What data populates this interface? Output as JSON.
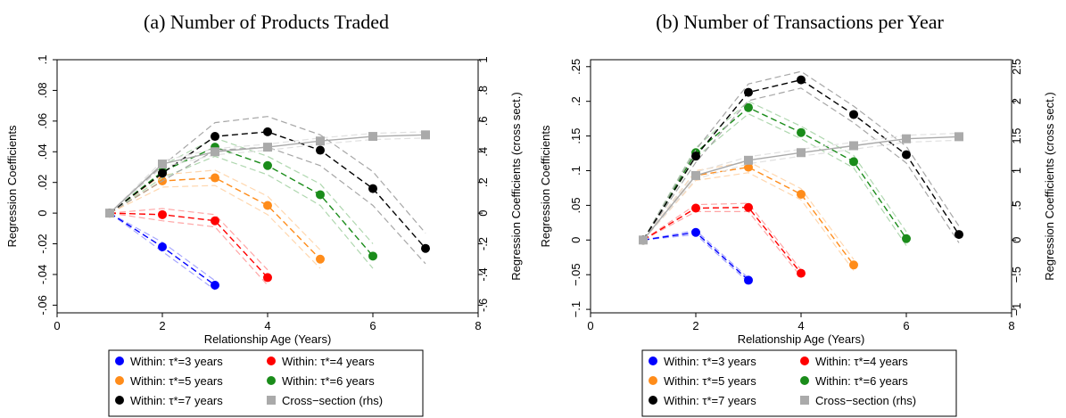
{
  "chart_data": [
    {
      "type": "line",
      "title": "(a) Number of Products Traded",
      "xlabel": "Relationship Age (Years)",
      "ylabel": "Regression Coefficients",
      "ylabel_right": "Regression Coefficients (cross sect.)",
      "xlim": [
        0,
        8
      ],
      "ylim": [
        -0.065,
        0.1
      ],
      "ylim_right": [
        -0.65,
        1.0
      ],
      "x_ticks": [
        0,
        2,
        4,
        6,
        8
      ],
      "x_tick_labels": [
        "0",
        "2",
        "4",
        "6",
        "8"
      ],
      "y_ticks": [
        -0.06,
        -0.04,
        -0.02,
        0,
        0.02,
        0.04,
        0.06,
        0.08,
        0.1
      ],
      "y_tick_labels": [
        "-.06",
        "-.04",
        "-.02",
        "0",
        ".02",
        ".04",
        ".06",
        ".08",
        ".1"
      ],
      "y_ticks_right": [
        -0.6,
        -0.4,
        -0.2,
        0,
        0.2,
        0.4,
        0.6,
        0.8,
        1.0
      ],
      "y_tick_labels_right": [
        "-.6",
        "-.4",
        "-.2",
        "0",
        ".2",
        ".4",
        ".6",
        ".8",
        "1"
      ],
      "grid": false,
      "series": [
        {
          "name": "Within: τ*=3 years",
          "color": "#0000ff",
          "axis": "left",
          "x": [
            1,
            2,
            3
          ],
          "y": [
            0,
            -0.022,
            -0.047
          ],
          "ci_upper": [
            0,
            -0.019,
            -0.044
          ],
          "ci_lower": [
            0,
            -0.025,
            -0.05
          ]
        },
        {
          "name": "Within: τ*=4 years",
          "color": "#ff0000",
          "axis": "left",
          "x": [
            1,
            2,
            3,
            4
          ],
          "y": [
            0,
            -0.001,
            -0.005,
            -0.042
          ],
          "ci_upper": [
            0,
            0.003,
            -0.001,
            -0.037
          ],
          "ci_lower": [
            0,
            -0.005,
            -0.009,
            -0.047
          ]
        },
        {
          "name": "Within: τ*=5 years",
          "color": "#ff8c1a",
          "axis": "left",
          "x": [
            1,
            2,
            3,
            4,
            5
          ],
          "y": [
            0,
            0.021,
            0.023,
            0.005,
            -0.03
          ],
          "ci_upper": [
            0,
            0.025,
            0.028,
            0.011,
            -0.024
          ],
          "ci_lower": [
            0,
            0.017,
            0.018,
            -0.001,
            -0.036
          ]
        },
        {
          "name": "Within: τ*=6 years",
          "color": "#1a8c1a",
          "axis": "left",
          "x": [
            1,
            2,
            3,
            4,
            5,
            6
          ],
          "y": [
            0,
            0.027,
            0.043,
            0.031,
            0.012,
            -0.028
          ],
          "ci_upper": [
            0,
            0.031,
            0.049,
            0.037,
            0.019,
            -0.02
          ],
          "ci_lower": [
            0,
            0.023,
            0.037,
            0.025,
            0.005,
            -0.036
          ]
        },
        {
          "name": "Within: τ*=7 years",
          "color": "#000000",
          "axis": "left",
          "x": [
            1,
            2,
            3,
            4,
            5,
            6,
            7
          ],
          "y": [
            0,
            0.026,
            0.05,
            0.053,
            0.041,
            0.016,
            -0.023
          ],
          "ci_upper": [
            0,
            0.031,
            0.059,
            0.063,
            0.051,
            0.027,
            -0.013
          ],
          "ci_lower": [
            0,
            0.021,
            0.041,
            0.043,
            0.031,
            0.005,
            -0.033
          ]
        },
        {
          "name": "Cross−section (rhs)",
          "color": "#aaaaaa",
          "axis": "right",
          "marker": "square",
          "x": [
            1,
            2,
            3,
            4,
            5,
            6,
            7
          ],
          "y": [
            0,
            0.32,
            0.4,
            0.43,
            0.47,
            0.5,
            0.51
          ],
          "ci_upper": [
            0,
            0.34,
            0.42,
            0.45,
            0.49,
            0.52,
            0.53
          ],
          "ci_lower": [
            0,
            0.3,
            0.38,
            0.41,
            0.45,
            0.48,
            0.49
          ]
        }
      ]
    },
    {
      "type": "line",
      "title": "(b) Number of Transactions per Year",
      "xlabel": "Relationship Age (Years)",
      "ylabel": "Regression Coefficients",
      "ylabel_right": "Regression Coefficients (cross sect.)",
      "xlim": [
        0,
        8
      ],
      "ylim": [
        -0.105,
        0.26
      ],
      "ylim_right": [
        -1.05,
        2.6
      ],
      "x_ticks": [
        0,
        2,
        4,
        6,
        8
      ],
      "x_tick_labels": [
        "0",
        "2",
        "4",
        "6",
        "8"
      ],
      "y_ticks": [
        -0.1,
        -0.05,
        0,
        0.05,
        0.1,
        0.15,
        0.2,
        0.25
      ],
      "y_tick_labels": [
        "−.1",
        "−.05",
        "0",
        ".05",
        ".1",
        ".15",
        ".2",
        ".25"
      ],
      "y_ticks_right": [
        -1,
        -0.5,
        0,
        0.5,
        1,
        1.5,
        2,
        2.5
      ],
      "y_tick_labels_right": [
        "−1",
        "−.5",
        "0",
        ".5",
        "1",
        "1.5",
        "2",
        "2.5"
      ],
      "grid": false,
      "series": [
        {
          "name": "Within: τ*=3 years",
          "color": "#0000ff",
          "axis": "left",
          "x": [
            1,
            2,
            3
          ],
          "y": [
            0,
            0.011,
            -0.058
          ],
          "ci_upper": [
            0,
            0.014,
            -0.055
          ],
          "ci_lower": [
            0,
            0.008,
            -0.061
          ]
        },
        {
          "name": "Within: τ*=4 years",
          "color": "#ff0000",
          "axis": "left",
          "x": [
            1,
            2,
            3,
            4
          ],
          "y": [
            0,
            0.046,
            0.047,
            -0.048
          ],
          "ci_upper": [
            0,
            0.051,
            0.053,
            -0.043
          ],
          "ci_lower": [
            0,
            0.041,
            0.041,
            -0.053
          ]
        },
        {
          "name": "Within: τ*=5 years",
          "color": "#ff8c1a",
          "axis": "left",
          "x": [
            1,
            2,
            3,
            4,
            5
          ],
          "y": [
            0,
            0.093,
            0.105,
            0.066,
            -0.036
          ],
          "ci_upper": [
            0,
            0.1,
            0.113,
            0.074,
            -0.028
          ],
          "ci_lower": [
            0,
            0.086,
            0.097,
            0.058,
            -0.044
          ]
        },
        {
          "name": "Within: τ*=6 years",
          "color": "#1a8c1a",
          "axis": "left",
          "x": [
            1,
            2,
            3,
            4,
            5,
            6
          ],
          "y": [
            0,
            0.126,
            0.191,
            0.155,
            0.113,
            0.002
          ],
          "ci_upper": [
            0,
            0.133,
            0.2,
            0.164,
            0.122,
            0.012
          ],
          "ci_lower": [
            0,
            0.119,
            0.182,
            0.146,
            0.104,
            -0.008
          ]
        },
        {
          "name": "Within: τ*=7 years",
          "color": "#000000",
          "axis": "left",
          "x": [
            1,
            2,
            3,
            4,
            5,
            6,
            7
          ],
          "y": [
            0,
            0.121,
            0.213,
            0.231,
            0.181,
            0.123,
            0.008
          ],
          "ci_upper": [
            0,
            0.13,
            0.225,
            0.243,
            0.193,
            0.135,
            0.02
          ],
          "ci_lower": [
            0,
            0.112,
            0.201,
            0.219,
            0.169,
            0.111,
            -0.004
          ]
        },
        {
          "name": "Cross−section (rhs)",
          "color": "#aaaaaa",
          "axis": "right",
          "marker": "square",
          "x": [
            1,
            2,
            3,
            4,
            5,
            6,
            7
          ],
          "y": [
            0,
            0.93,
            1.15,
            1.26,
            1.36,
            1.46,
            1.49
          ],
          "ci_upper": [
            0,
            0.98,
            1.2,
            1.31,
            1.41,
            1.51,
            1.54
          ],
          "ci_lower": [
            0,
            0.88,
            1.1,
            1.21,
            1.31,
            1.41,
            1.44
          ]
        }
      ]
    }
  ]
}
